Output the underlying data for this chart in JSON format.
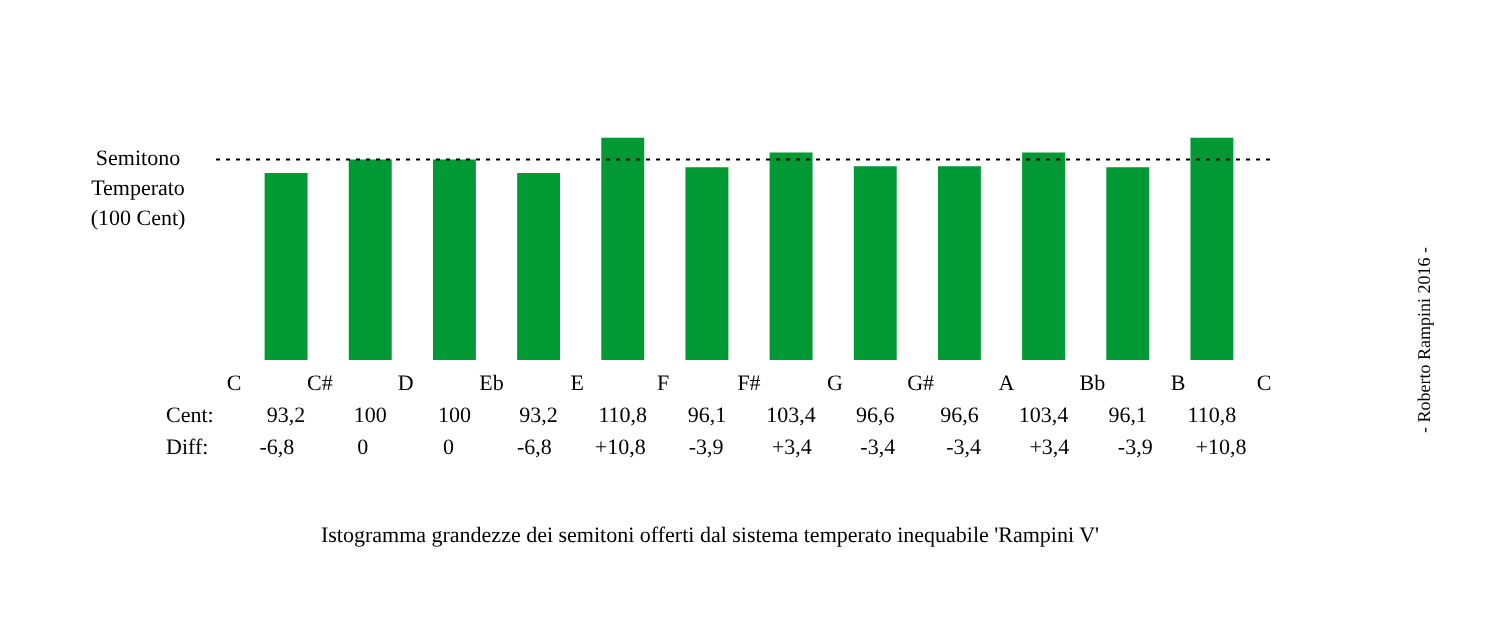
{
  "chart_data": {
    "type": "bar",
    "categories": [
      null,
      null,
      null,
      null,
      null,
      null,
      null,
      null,
      null,
      null,
      null,
      null
    ],
    "values": [
      93.2,
      100,
      100,
      93.2,
      110.8,
      96.1,
      103.4,
      96.6,
      96.6,
      103.4,
      96.1,
      110.8
    ],
    "color": "#009933",
    "value_labels": [
      "93,2",
      "100",
      "100",
      "93,2",
      "110,8",
      "96,1",
      "103,4",
      "96,6",
      "96,6",
      "103,4",
      "96,1",
      "110,8"
    ],
    "ref_lines": [
      {
        "axis": "y",
        "value": 100,
        "label": "Semitono Temperato (100 Cent)",
        "line_style": "dotted",
        "color": "#000000"
      }
    ],
    "annotations": [
      "C",
      "C#",
      "D",
      "Eb",
      "E",
      "F",
      "F#",
      "G",
      "G#",
      "A",
      "Bb",
      "B",
      "C",
      "Cent:",
      "Diff:",
      "-6,8",
      "0",
      "0",
      "-6,8",
      "+10,8",
      "-3,9",
      "+3,4",
      "-3,4",
      "-3,4",
      "+3,4",
      "-3,9",
      "+10,8",
      "Istogramma grandezze dei semitoni offerti dal sistema temperato inequabile 'Rampini V'",
      "- Roberto Rampini 2016 -"
    ]
  }
}
